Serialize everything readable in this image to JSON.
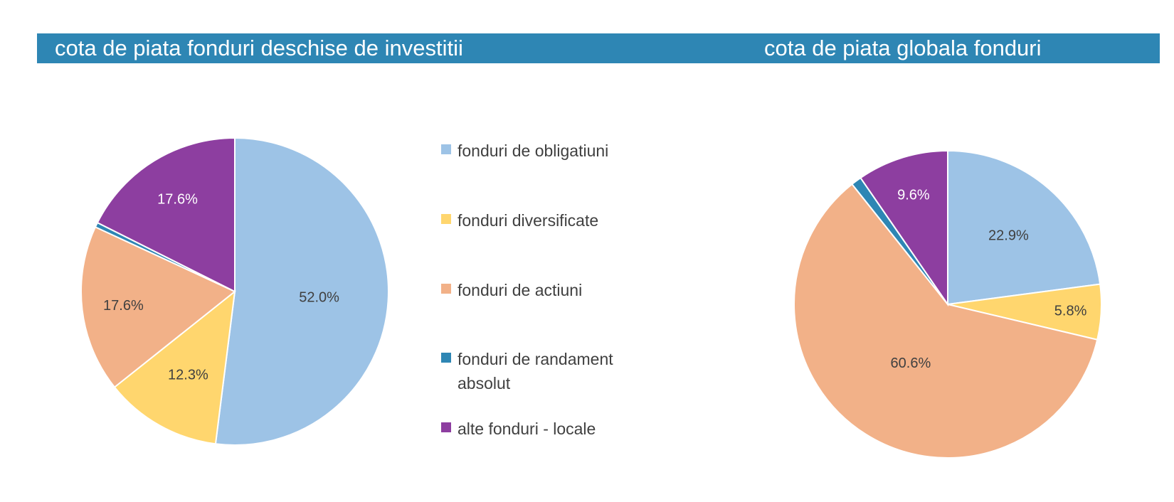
{
  "colors": {
    "header": "#2e86b4",
    "obligatiuni": "#9dc3e6",
    "diversificate": "#ffd66e",
    "actiuni": "#f2b188",
    "randament": "#2e86b4",
    "alte": "#8d3ea0"
  },
  "legend": [
    {
      "label": "fonduri de obligatiuni",
      "color": "#9dc3e6"
    },
    {
      "label": "fonduri diversificate",
      "color": "#ffd66e"
    },
    {
      "label": "fonduri de actiuni",
      "color": "#f2b188"
    },
    {
      "label": "fonduri de randament absolut",
      "color": "#2e86b4"
    },
    {
      "label": "alte fonduri - locale",
      "color": "#8d3ea0"
    }
  ],
  "chart_data": [
    {
      "type": "pie",
      "title": "cota de piata fonduri deschise de investitii",
      "categories": [
        "fonduri de obligatiuni",
        "fonduri diversificate",
        "fonduri de actiuni",
        "fonduri de randament absolut",
        "alte fonduri - locale"
      ],
      "values": [
        52.0,
        12.3,
        17.6,
        0.5,
        17.6
      ],
      "labels": [
        "52.0%",
        "12.3%",
        "17.6%",
        "",
        "17.6%"
      ],
      "label_colors": [
        "#404040",
        "#404040",
        "#404040",
        "#ffffff",
        "#ffffff"
      ],
      "legend": "right"
    },
    {
      "type": "pie",
      "title": "cota de piata globala fonduri",
      "categories": [
        "fonduri de obligatiuni",
        "fonduri diversificate",
        "fonduri de actiuni",
        "fonduri de randament absolut",
        "alte fonduri - locale"
      ],
      "values": [
        22.9,
        5.8,
        60.6,
        1.1,
        9.6
      ],
      "labels": [
        "22.9%",
        "5.8%",
        "60.6%",
        "",
        "9.6%"
      ],
      "label_colors": [
        "#404040",
        "#404040",
        "#404040",
        "#ffffff",
        "#ffffff"
      ],
      "legend": "none"
    }
  ]
}
